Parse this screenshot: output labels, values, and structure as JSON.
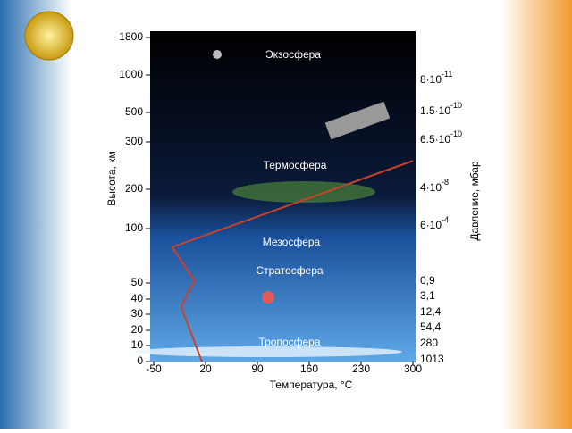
{
  "chart_data": {
    "type": "line",
    "x_label": "Температура, °C",
    "y_label": "Высота, км",
    "y2_label": "Давление, мбар",
    "layers": [
      "Экзосфера",
      "Термосфера",
      "Мезосфера",
      "Стратосфера",
      "Тропосфера"
    ],
    "x": [
      15,
      -13,
      5,
      -25,
      300
    ],
    "series": [
      {
        "color": "#c8432a",
        "values": [
          0,
          35,
          52,
          83,
          260
        ]
      }
    ],
    "xlim": [
      -50,
      300
    ],
    "xticks": [
      -50,
      20,
      90,
      160,
      230,
      300
    ],
    "ylim": [
      0,
      1800
    ],
    "yticks": [
      0,
      10,
      20,
      30,
      40,
      50,
      100,
      200,
      300,
      500,
      1000,
      1800
    ],
    "pressure_labels": [
      {
        "base": "8·10",
        "exp": "-11"
      },
      {
        "base": "1.5·10",
        "exp": "-10"
      },
      {
        "base": "6.5·10",
        "exp": "-10"
      },
      {
        "base": "4·10",
        "exp": "-8"
      },
      {
        "base": "6·10",
        "exp": "-4"
      },
      {
        "base": "0,9"
      },
      {
        "base": "3,1"
      },
      {
        "base": "12,4"
      },
      {
        "base": "54,4"
      },
      {
        "base": "280"
      },
      {
        "base": "1013"
      }
    ]
  }
}
